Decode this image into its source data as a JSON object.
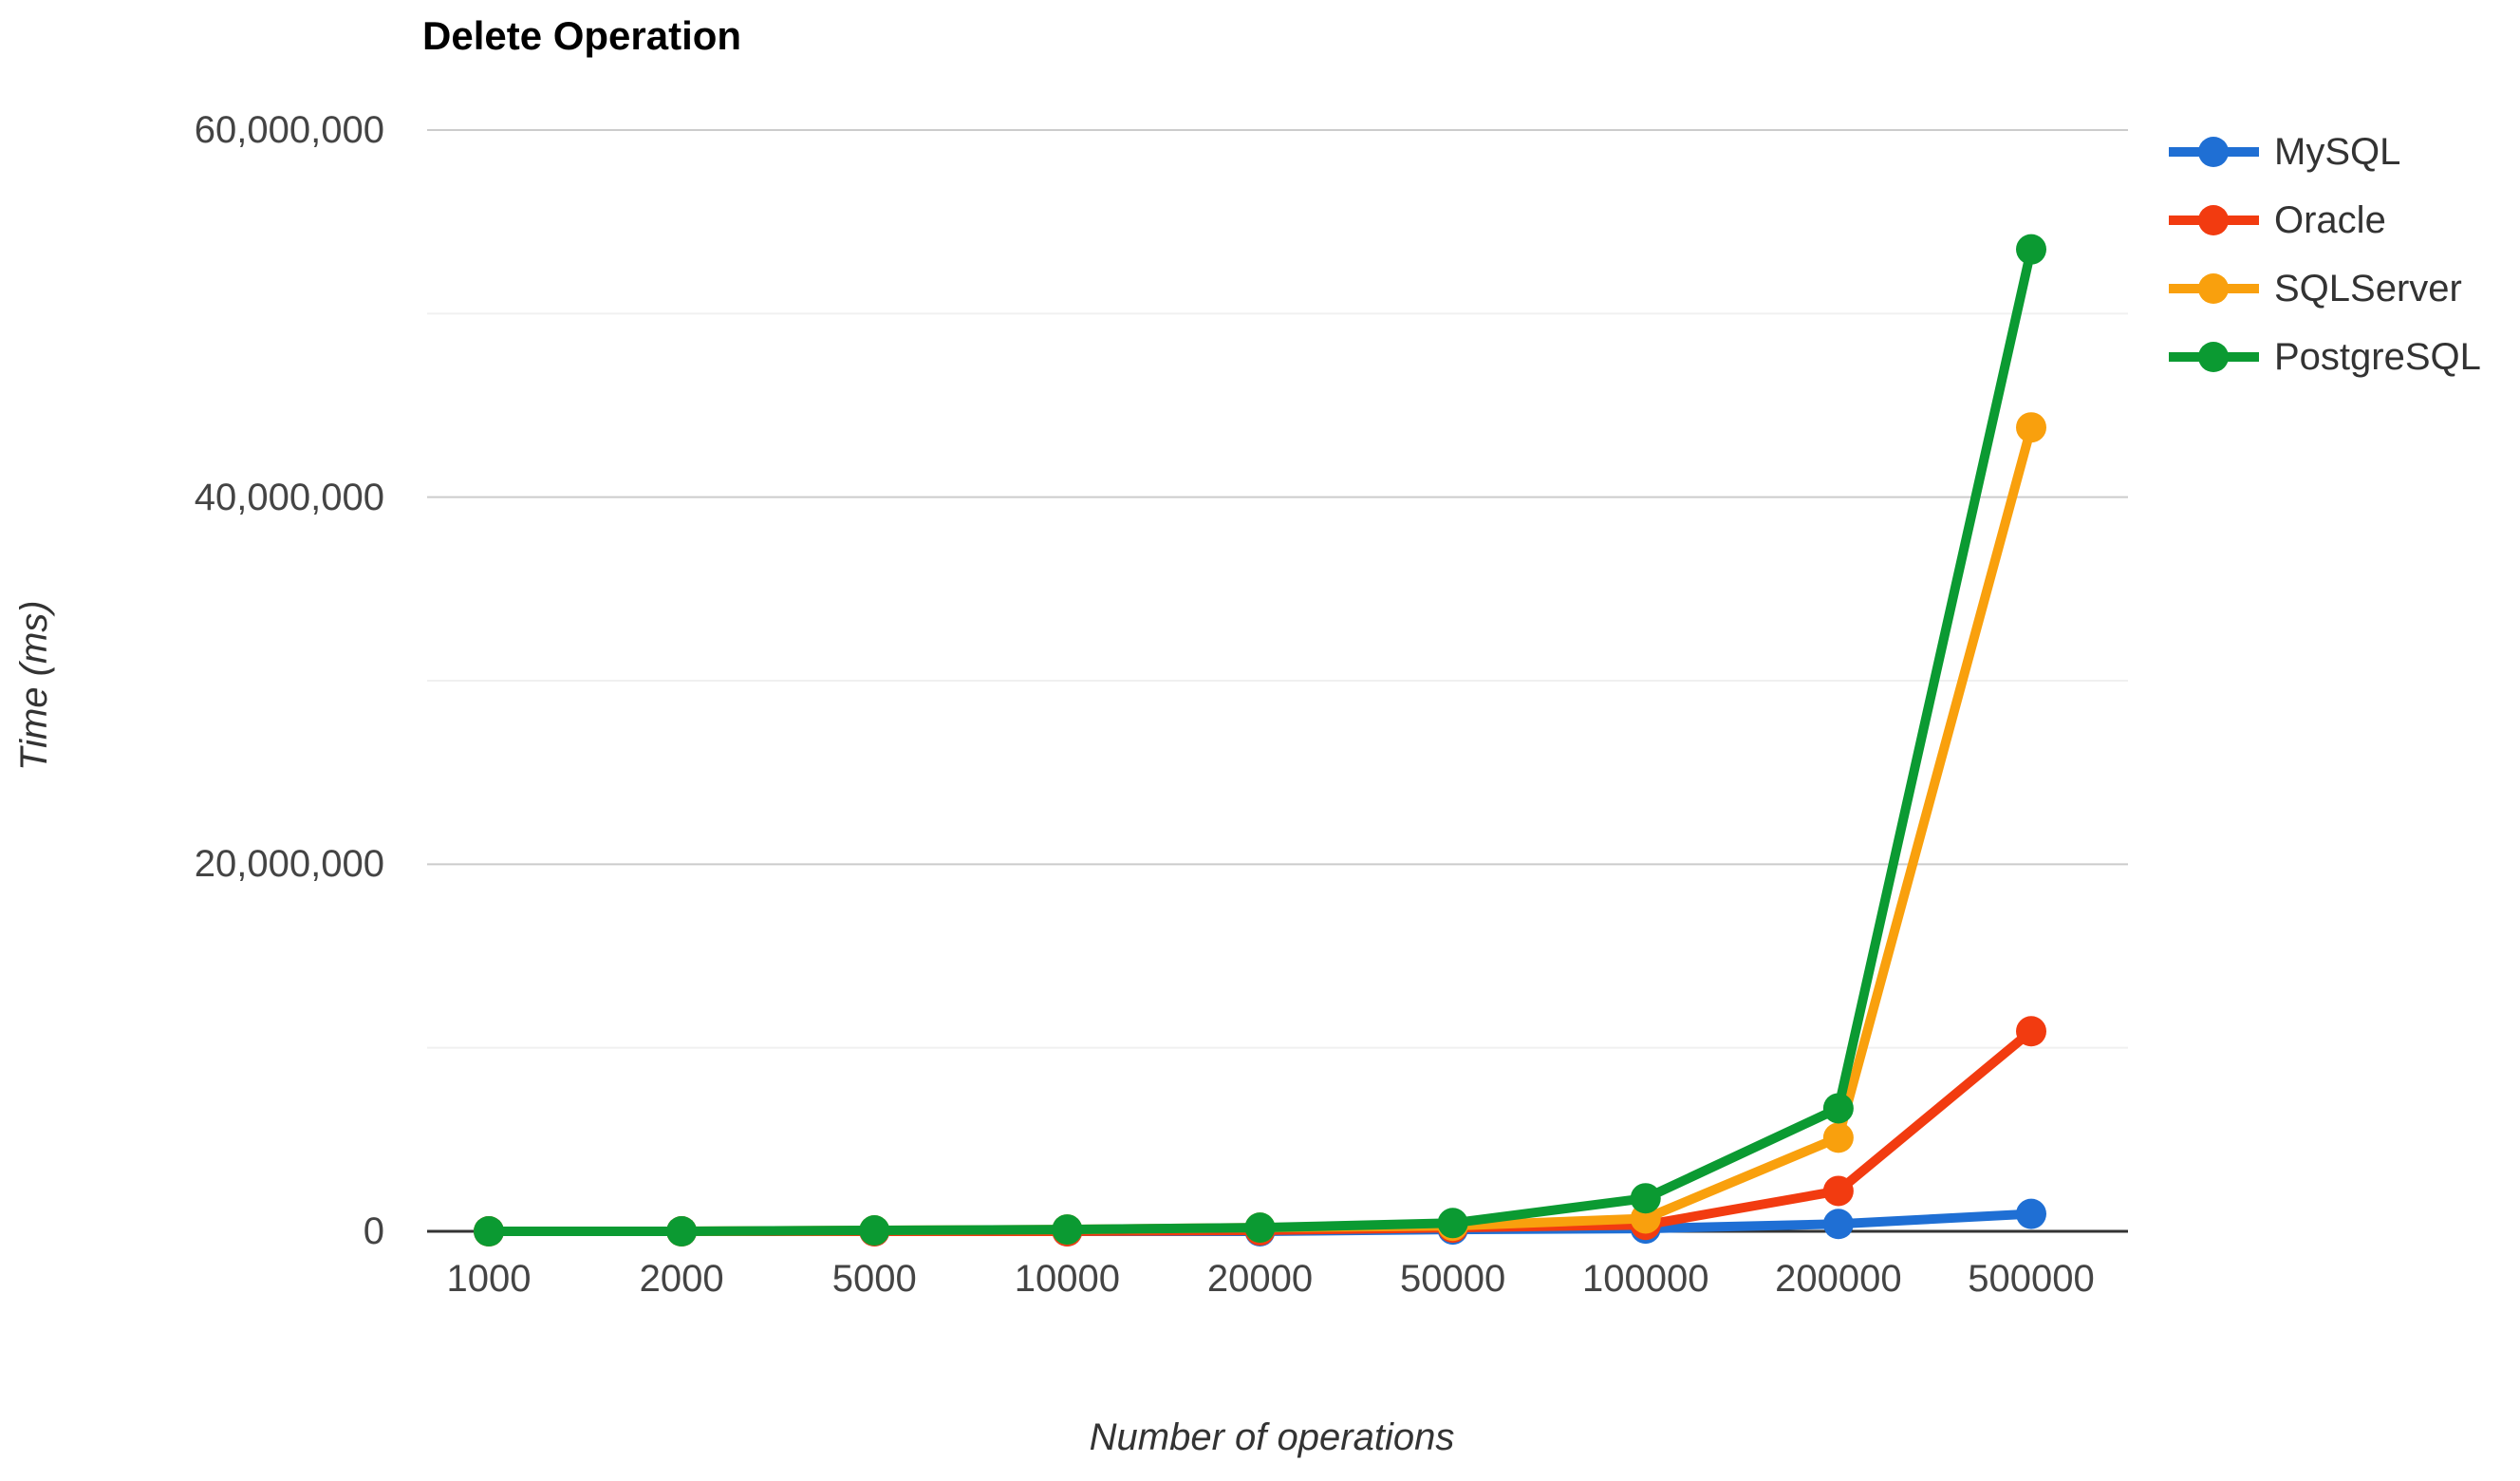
{
  "colors": {
    "background": "#ffffff",
    "grid_major": "#cccccc",
    "grid_minor": "#f0f0f0",
    "axis_line": "#333333",
    "tick_label": "#444444",
    "title": "#000000",
    "axis_title": "#333333",
    "legend_label": "#333333"
  },
  "chart_data": {
    "type": "line",
    "title": "Delete Operation",
    "xlabel": "Number of operations",
    "ylabel": "Time (ms)",
    "legend_position": "right",
    "grid": "on",
    "ylim": [
      0,
      60000000
    ],
    "categories": [
      1000,
      2000,
      5000,
      10000,
      20000,
      50000,
      100000,
      200000,
      500000
    ],
    "x_tick_labels": [
      "1000",
      "2000",
      "5000",
      "10000",
      "20000",
      "50000",
      "100000",
      "200000",
      "500000"
    ],
    "y_ticks": [
      {
        "value": 0,
        "label": "0"
      },
      {
        "value": 20000000,
        "label": "20,000,000"
      },
      {
        "value": 40000000,
        "label": "40,000,000"
      },
      {
        "value": 60000000,
        "label": "60,000,000"
      }
    ],
    "y_minor_gridlines": [
      10000000,
      30000000,
      50000000
    ],
    "series": [
      {
        "name": "MySQL",
        "color": "#1f6fd4",
        "values": [
          0,
          0,
          0,
          0,
          0,
          100000,
          150000,
          400000,
          950000
        ]
      },
      {
        "name": "Oracle",
        "color": "#f23b10",
        "values": [
          0,
          0,
          0,
          0,
          50000,
          200000,
          350000,
          2200000,
          10900000
        ]
      },
      {
        "name": "SQLServer",
        "color": "#f9a00d",
        "values": [
          0,
          0,
          50000,
          100000,
          200000,
          300000,
          700000,
          5100000,
          43800000
        ]
      },
      {
        "name": "PostgreSQL",
        "color": "#0b9a32",
        "values": [
          0,
          0,
          50000,
          100000,
          200000,
          450000,
          1800000,
          6700000,
          53500000
        ]
      }
    ]
  }
}
